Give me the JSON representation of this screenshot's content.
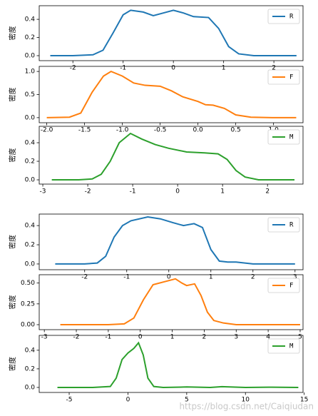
{
  "chart_data": [
    {
      "type": "line",
      "ylabel": "密度",
      "legend": "upper right",
      "x": [
        -2.45,
        -2,
        -1.6,
        -1.4,
        -1.2,
        -1.0,
        -0.85,
        -0.6,
        -0.4,
        -0.2,
        0,
        0.2,
        0.4,
        0.7,
        0.9,
        1.1,
        1.3,
        1.6,
        2,
        2.45
      ],
      "series": [
        {
          "name": "R",
          "color": "#1f77b4",
          "values": [
            0,
            0,
            0.01,
            0.06,
            0.25,
            0.45,
            0.5,
            0.48,
            0.44,
            0.47,
            0.5,
            0.47,
            0.43,
            0.42,
            0.3,
            0.1,
            0.02,
            0,
            0,
            0
          ]
        }
      ],
      "xlim": [
        -2.67,
        2.58
      ],
      "ylim": [
        -0.055,
        0.55
      ],
      "xticks": [
        -2,
        -1,
        0,
        1,
        2
      ],
      "yticks": [
        {
          "value": 0,
          "label": "0.0"
        },
        0.2,
        0.4
      ]
    },
    {
      "type": "line",
      "ylabel": "密度",
      "legend": "upper right",
      "x": [
        -2.0,
        -1.7,
        -1.55,
        -1.4,
        -1.25,
        -1.15,
        -1.0,
        -0.85,
        -0.7,
        -0.5,
        -0.35,
        -0.2,
        0,
        0.1,
        0.2,
        0.35,
        0.5,
        0.7,
        1.0,
        1.3
      ],
      "series": [
        {
          "name": "F",
          "color": "#ff7f0e",
          "values": [
            0,
            0.01,
            0.1,
            0.55,
            0.9,
            1.0,
            0.9,
            0.75,
            0.7,
            0.68,
            0.58,
            0.45,
            0.35,
            0.28,
            0.27,
            0.2,
            0.06,
            0.01,
            0,
            0
          ]
        }
      ],
      "xlim": [
        -2.1,
        1.39
      ],
      "ylim": [
        -0.11,
        1.11
      ],
      "xticks": [
        {
          "value": -2,
          "label": "-2.0"
        },
        -1.5,
        {
          "value": -1,
          "label": "-1.0"
        },
        -0.5,
        {
          "value": 0,
          "label": "0.0"
        },
        0.5,
        {
          "value": 1,
          "label": "1.0"
        }
      ],
      "yticks": [
        {
          "value": 0,
          "label": "0.0"
        },
        0.5,
        {
          "value": 1,
          "label": "1.0"
        }
      ]
    },
    {
      "type": "line",
      "ylabel": "密度",
      "legend": "upper right",
      "x": [
        -2.8,
        -2.2,
        -1.9,
        -1.7,
        -1.5,
        -1.3,
        -1.05,
        -0.8,
        -0.5,
        -0.2,
        0.2,
        0.6,
        0.9,
        1.1,
        1.3,
        1.5,
        1.8,
        2.2,
        2.6
      ],
      "series": [
        {
          "name": "M",
          "color": "#2ca02c",
          "values": [
            0,
            0,
            0.01,
            0.06,
            0.2,
            0.4,
            0.5,
            0.44,
            0.38,
            0.34,
            0.3,
            0.29,
            0.28,
            0.22,
            0.1,
            0.03,
            0,
            0,
            0
          ]
        }
      ],
      "xlim": [
        -3.08,
        2.79
      ],
      "ylim": [
        -0.046,
        0.577
      ],
      "xticks": [
        -3,
        -2,
        -1,
        0,
        1,
        2
      ],
      "yticks": [
        {
          "value": 0,
          "label": "0.0"
        },
        0.2,
        0.4
      ]
    },
    {
      "type": "line",
      "ylabel": "密度",
      "legend": "upper right",
      "x": [
        -2.7,
        -2,
        -1.7,
        -1.5,
        -1.3,
        -1.1,
        -0.9,
        -0.5,
        -0.2,
        0.1,
        0.35,
        0.6,
        0.8,
        1.0,
        1.2,
        1.4,
        1.6,
        2.0,
        2.5,
        3.0
      ],
      "series": [
        {
          "name": "R",
          "color": "#1f77b4",
          "values": [
            0,
            0,
            0.01,
            0.08,
            0.28,
            0.4,
            0.45,
            0.49,
            0.47,
            0.43,
            0.4,
            0.42,
            0.38,
            0.15,
            0.03,
            0.02,
            0.02,
            0,
            0,
            0
          ]
        }
      ],
      "xlim": [
        -3.08,
        3.19
      ],
      "ylim": [
        -0.06,
        0.52
      ],
      "xticks": [
        -2,
        -1,
        0,
        1,
        2,
        3
      ],
      "yticks": [
        {
          "value": 0,
          "label": "0.0"
        },
        0.2,
        0.4
      ]
    },
    {
      "type": "line",
      "ylabel": "密度",
      "legend": "upper right",
      "x": [
        -2.5,
        -1,
        -0.5,
        -0.2,
        0.1,
        0.4,
        0.8,
        1.1,
        1.3,
        1.45,
        1.7,
        1.9,
        2.1,
        2.3,
        2.6,
        3,
        4,
        5
      ],
      "series": [
        {
          "name": "F",
          "color": "#ff7f0e",
          "values": [
            0,
            0,
            0.01,
            0.08,
            0.3,
            0.48,
            0.52,
            0.55,
            0.5,
            0.47,
            0.49,
            0.35,
            0.15,
            0.05,
            0.02,
            0,
            0,
            0
          ]
        }
      ],
      "xlim": [
        -3.16,
        5.09
      ],
      "ylim": [
        -0.06,
        0.6
      ],
      "xticks": [
        -3,
        -2,
        -1,
        0,
        1,
        2,
        3,
        4,
        5
      ],
      "yticks": [
        {
          "value": 0,
          "label": "0.00"
        },
        0.25,
        {
          "value": 0.5,
          "label": "0.50"
        }
      ]
    },
    {
      "type": "line",
      "ylabel": "密度",
      "legend": "upper right",
      "x": [
        -6,
        -3,
        -1.5,
        -1,
        -0.5,
        0,
        0.5,
        0.9,
        1.3,
        1.7,
        2.2,
        3,
        5,
        7,
        8,
        10,
        12,
        14.5
      ],
      "series": [
        {
          "name": "M",
          "color": "#2ca02c",
          "values": [
            0,
            0,
            0.01,
            0.1,
            0.3,
            0.37,
            0.42,
            0.48,
            0.35,
            0.1,
            0.01,
            0,
            0.005,
            0,
            0.008,
            0,
            0.003,
            0
          ]
        }
      ],
      "xlim": [
        -7.55,
        14.9
      ],
      "ylim": [
        -0.054,
        0.56
      ],
      "xticks": [
        -5,
        0,
        5,
        10,
        15
      ],
      "yticks": [
        {
          "value": 0,
          "label": "0.0"
        },
        0.2,
        0.4
      ]
    }
  ],
  "watermark": "https://blog.csdn.net/Caiqiudan"
}
